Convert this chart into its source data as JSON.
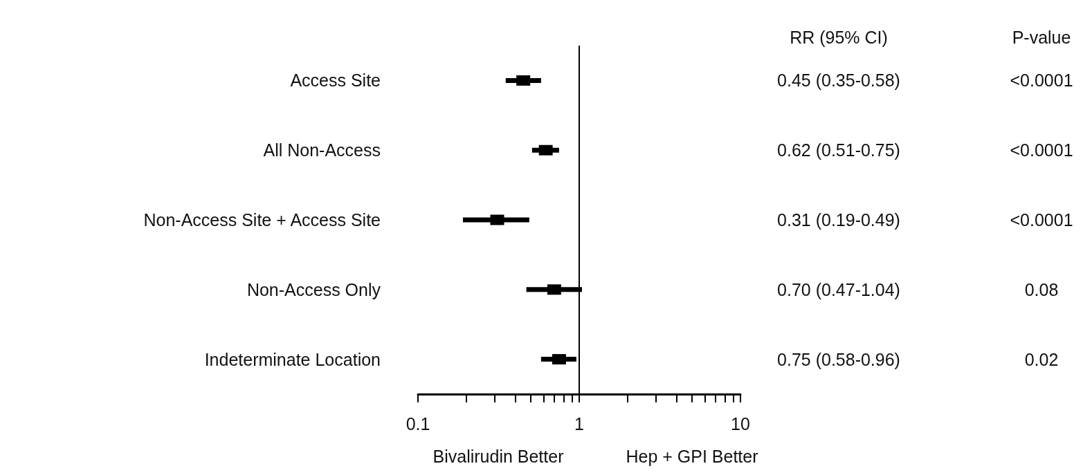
{
  "chart_data": {
    "type": "scatter",
    "categories": [
      "Access Site",
      "All Non-Access",
      "Non-Access Site + Access Site",
      "Non-Access Only",
      "Indeterminate Location"
    ],
    "values": [
      0.45,
      0.62,
      0.31,
      0.7,
      0.75
    ],
    "errors": [
      [
        0.35,
        0.58
      ],
      [
        0.51,
        0.75
      ],
      [
        0.19,
        0.49
      ],
      [
        0.47,
        1.04
      ],
      [
        0.58,
        0.96
      ]
    ],
    "value_labels": [
      "0.45 (0.35-0.58)",
      "0.62 (0.51-0.75)",
      "0.31 (0.19-0.49)",
      "0.70 (0.47-1.04)",
      "0.75 (0.58-0.96)"
    ],
    "orientation": "horizontal",
    "color": "#000000",
    "marker": "square",
    "log": "x",
    "xlim": [
      0.1,
      10
    ],
    "xticks": [
      0.1,
      {
        "value": 0.2,
        "label": null
      },
      {
        "value": 0.3,
        "label": null
      },
      {
        "value": 0.4,
        "label": null
      },
      {
        "value": 0.5,
        "label": null
      },
      {
        "value": 0.6,
        "label": null
      },
      {
        "value": 0.7,
        "label": null
      },
      {
        "value": 0.8,
        "label": null
      },
      {
        "value": 0.9,
        "label": null
      },
      1,
      {
        "value": 2,
        "label": null
      },
      {
        "value": 3,
        "label": null
      },
      {
        "value": 4,
        "label": null
      },
      {
        "value": 5,
        "label": null
      },
      {
        "value": 6,
        "label": null
      },
      {
        "value": 7,
        "label": null
      },
      {
        "value": 8,
        "label": null
      },
      {
        "value": 9,
        "label": null
      },
      10
    ],
    "ref_lines": [
      {
        "axis": "x",
        "value": 1,
        "label": null
      }
    ],
    "grid": false,
    "annotations": [
      "RR (95% CI)",
      "P-value",
      "Bivalirudin Better",
      "Hep + GPI Better",
      "<0.0001",
      "<0.0001",
      "<0.0001",
      "0.08",
      "0.02"
    ]
  }
}
